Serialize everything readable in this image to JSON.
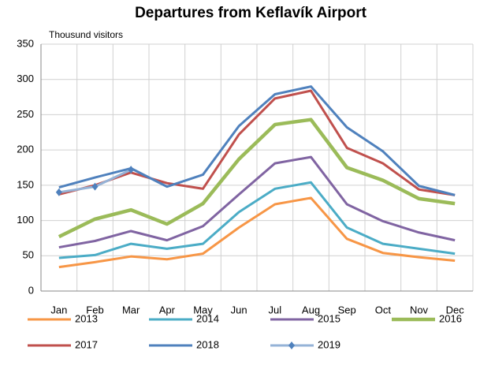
{
  "chart_data": {
    "type": "line",
    "title": "Departures from Keflavík Airport",
    "y_label": "Thousund visitors",
    "categories": [
      "Jan",
      "Feb",
      "Mar",
      "Apr",
      "May",
      "Jun",
      "Jul",
      "Aug",
      "Sep",
      "Oct",
      "Nov",
      "Dec"
    ],
    "series": [
      {
        "name": "2013",
        "color": "#f79646",
        "values": [
          34,
          41,
          49,
          45,
          53,
          90,
          123,
          132,
          74,
          54,
          48,
          43
        ]
      },
      {
        "name": "2014",
        "color": "#4bacc6",
        "values": [
          47,
          51,
          67,
          60,
          67,
          112,
          145,
          154,
          90,
          67,
          60,
          53
        ]
      },
      {
        "name": "2015",
        "color": "#8064a2",
        "values": [
          62,
          71,
          85,
          72,
          92,
          137,
          181,
          190,
          123,
          99,
          83,
          72
        ]
      },
      {
        "name": "2016",
        "color": "#9bbb59",
        "values": [
          77,
          102,
          115,
          95,
          124,
          187,
          236,
          243,
          175,
          157,
          131,
          124
        ]
      },
      {
        "name": "2017",
        "color": "#c0504d",
        "values": [
          137,
          150,
          168,
          153,
          145,
          222,
          273,
          284,
          203,
          181,
          144,
          136
        ]
      },
      {
        "name": "2018",
        "color": "#4f81bd",
        "values": [
          147,
          161,
          174,
          148,
          165,
          234,
          279,
          290,
          232,
          198,
          149,
          136
        ]
      },
      {
        "name": "2019",
        "color": "#95b3d7",
        "values": [
          140,
          148,
          172,
          null,
          null,
          null,
          null,
          null,
          null,
          null,
          null,
          null
        ]
      }
    ],
    "ylim": [
      0,
      350
    ],
    "yticks": [
      0,
      50,
      100,
      150,
      200,
      250,
      300,
      350
    ],
    "grid": true,
    "legend": "bottom"
  }
}
